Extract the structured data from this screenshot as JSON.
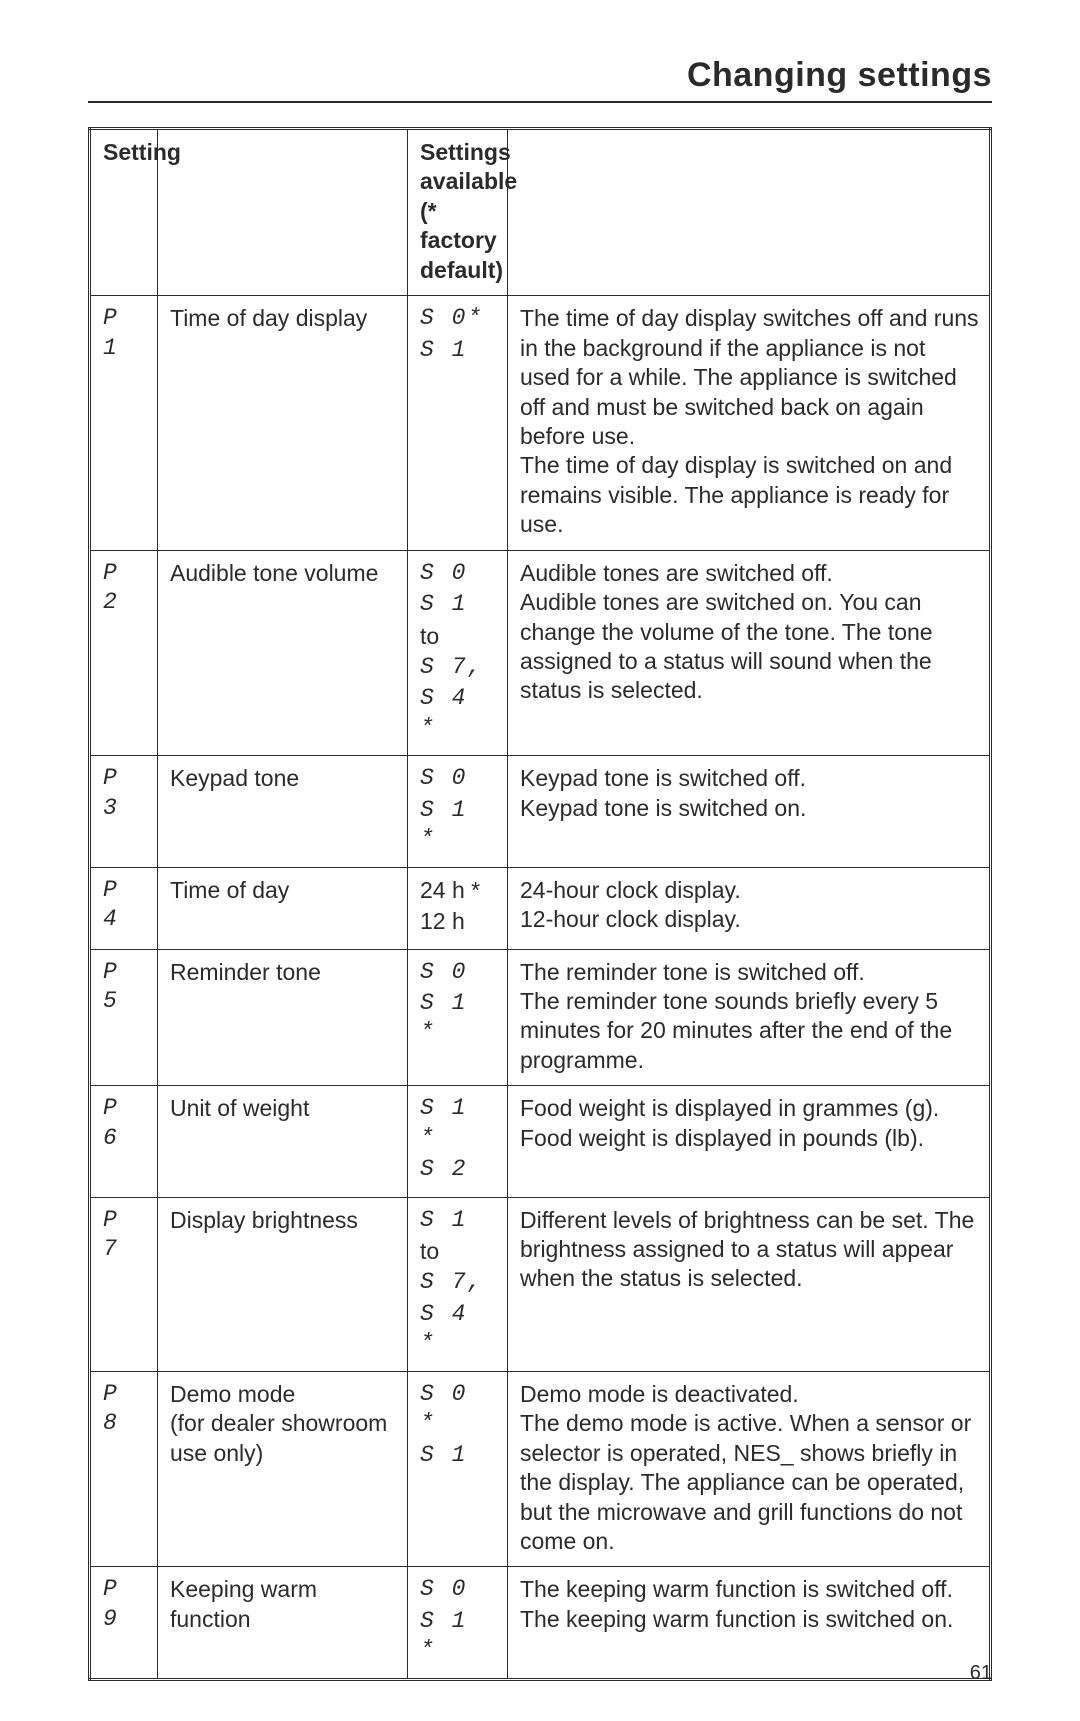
{
  "page": {
    "title": "Changing settings",
    "footer_page_number": "61"
  },
  "table": {
    "header_setting": "Setting",
    "header_available": "Settings available (* factory default)",
    "rows": [
      {
        "code": "P 1",
        "name": "Time of day display",
        "statuses": [
          "S 0*",
          "S 1"
        ],
        "description": "The time of day display switches off and runs in the background if the appliance is not used for a while. The appliance is switched off and must be switched back on again before use.\nThe time of day display is switched on and remains visible. The appliance is ready for use."
      },
      {
        "code": "P 2",
        "name": "Audible tone volume",
        "statuses": [
          "S 0",
          "S 1",
          "to",
          "S 7,",
          "S 4 *"
        ],
        "description": "Audible tones are switched off.\nAudible tones are switched on. You can change the volume of the tone.  The tone assigned to a status will sound when the status is selected."
      },
      {
        "code": "P 3",
        "name": "Keypad tone",
        "statuses": [
          "S 0",
          "S 1 *"
        ],
        "description": "Keypad tone is switched off.\nKeypad tone is switched on."
      },
      {
        "code": "P 4",
        "name": "Time of day",
        "statuses": [
          "24 h *",
          "12 h"
        ],
        "description": "24-hour clock display.\n12-hour clock display."
      },
      {
        "code": "P 5",
        "name": "Reminder tone",
        "statuses": [
          "S 0",
          "S 1 *"
        ],
        "description": "The reminder tone is switched off.\nThe reminder tone sounds briefly every 5 minutes for 20 minutes after the end of the programme."
      },
      {
        "code": "P 6",
        "name": "Unit of weight",
        "statuses": [
          "S 1 *",
          "S 2"
        ],
        "description": "Food weight is displayed in grammes (g).\nFood weight is displayed in pounds (lb)."
      },
      {
        "code": "P 7",
        "name": "Display brightness",
        "statuses": [
          "S 1",
          "to",
          "S 7,",
          "S 4 *"
        ],
        "description": "Different levels of brightness can be set. The brightness assigned to a status will appear when the status is selected."
      },
      {
        "code": "P 8",
        "name": "Demo mode\n(for dealer showroom use only)",
        "statuses": [
          "S 0 *",
          "S 1"
        ],
        "description": "Demo mode is deactivated.\nThe demo mode is active. When a sensor or selector is operated, NES_ shows briefly in the display. The appliance can be operated, but the microwave and grill functions do not come on."
      },
      {
        "code": "P 9",
        "name": "Keeping warm function",
        "statuses": [
          "S 0",
          "S 1 *"
        ],
        "description": "The keeping warm function is switched off.\nThe keeping warm function is switched on."
      }
    ]
  }
}
